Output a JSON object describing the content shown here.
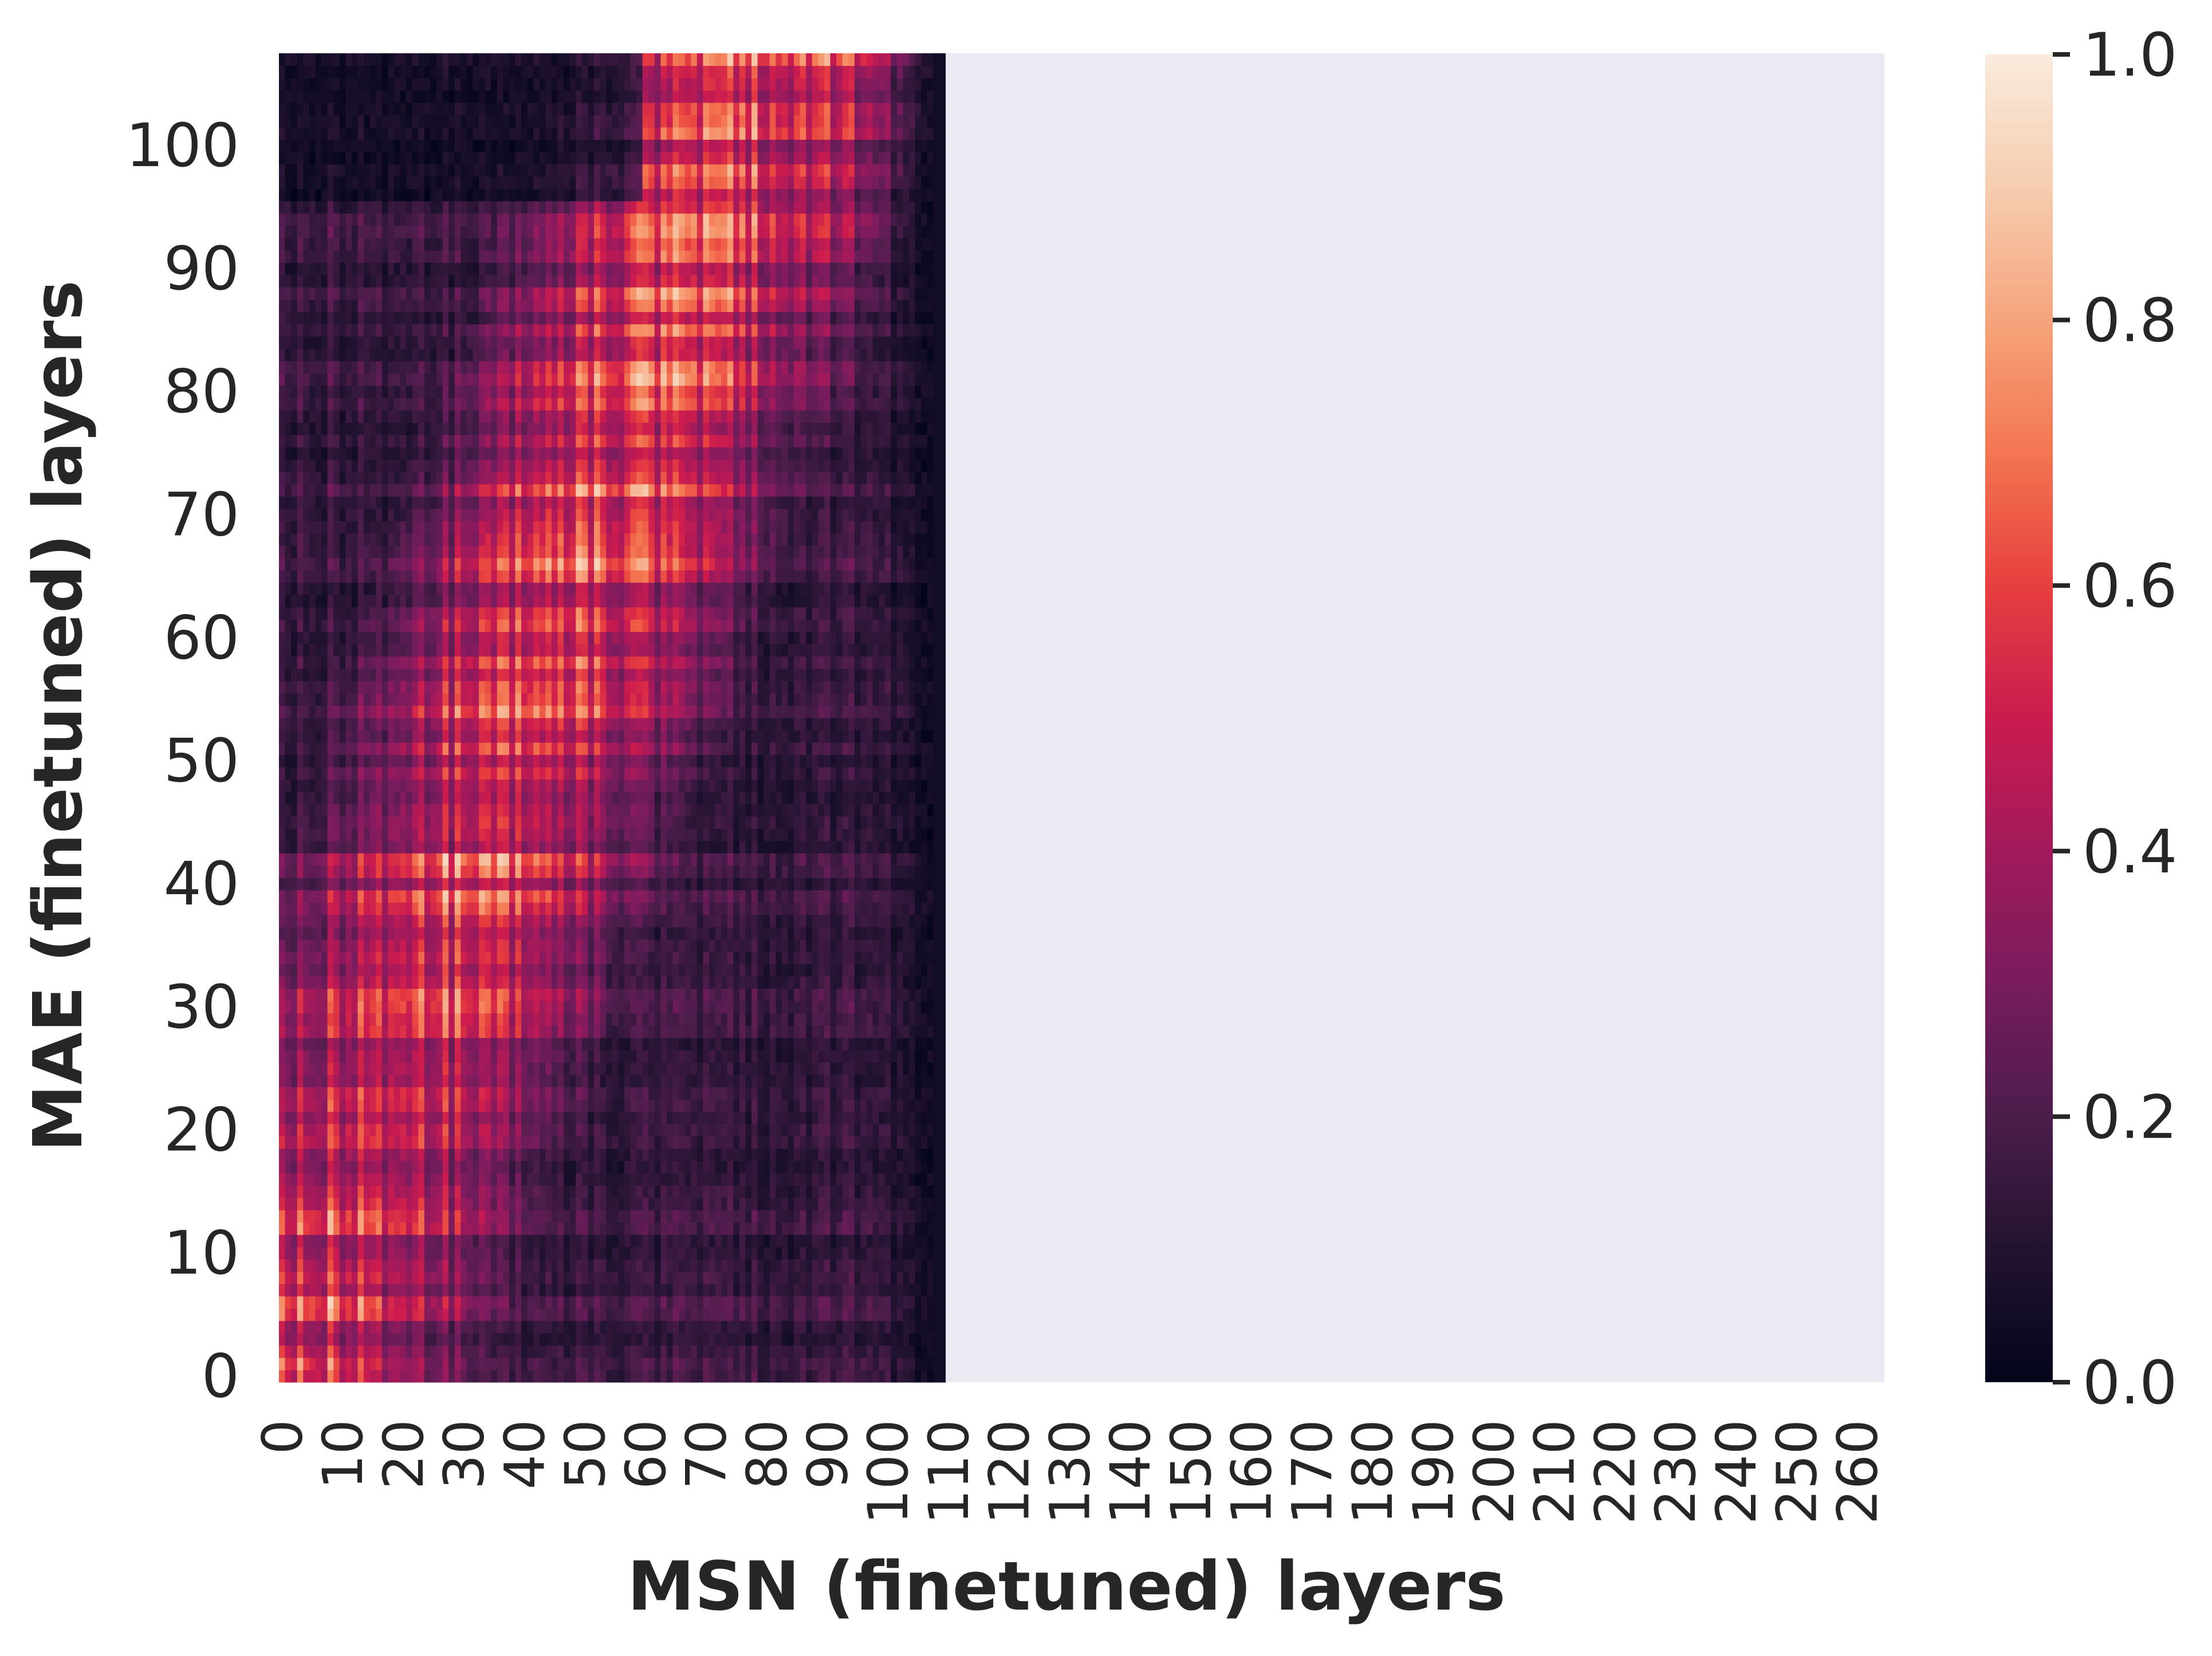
{
  "chart_data": {
    "type": "heatmap",
    "title": "",
    "xlabel": "MSN (finetuned) layers",
    "ylabel": "MAE (finetuned) layers",
    "x_range": [
      0,
      265
    ],
    "y_range": [
      0,
      108
    ],
    "data_x_extent": [
      0,
      110
    ],
    "empty_fill": "#EAEAF2",
    "x_ticks": [
      0,
      10,
      20,
      30,
      40,
      50,
      60,
      70,
      80,
      90,
      100,
      110,
      120,
      130,
      140,
      150,
      160,
      170,
      180,
      190,
      200,
      210,
      220,
      230,
      240,
      250,
      260
    ],
    "x_tick_labels": [
      "0",
      "10",
      "20",
      "30",
      "40",
      "50",
      "60",
      "70",
      "80",
      "90",
      "100",
      "110",
      "120",
      "130",
      "140",
      "150",
      "160",
      "170",
      "180",
      "190",
      "200",
      "210",
      "220",
      "230",
      "240",
      "250",
      "260"
    ],
    "y_ticks": [
      0,
      10,
      20,
      30,
      40,
      50,
      60,
      70,
      80,
      90,
      100
    ],
    "y_tick_labels": [
      "0",
      "10",
      "20",
      "30",
      "40",
      "50",
      "60",
      "70",
      "80",
      "90",
      "100"
    ],
    "colorbar": {
      "min": 0.0,
      "max": 1.0,
      "ticks": [
        0.0,
        0.2,
        0.4,
        0.6,
        0.8,
        1.0
      ],
      "tick_labels": [
        "0.0",
        "0.2",
        "0.4",
        "0.6",
        "0.8",
        "1.0"
      ],
      "colormap": "rocket",
      "stops": [
        "#03051A",
        "#221331",
        "#4C1D4B",
        "#781C5E",
        "#A11A5B",
        "#CB1B4F",
        "#E83F3F",
        "#F37651",
        "#F6A47C",
        "#F6CDB0",
        "#FAEBDD"
      ]
    },
    "similarity_pattern": {
      "description_values": {
        "peak_near_diagonal": 0.95,
        "mid_band_level": 0.75,
        "right_edge_level": 0.05,
        "top_rows_level": 0.15
      }
    }
  }
}
